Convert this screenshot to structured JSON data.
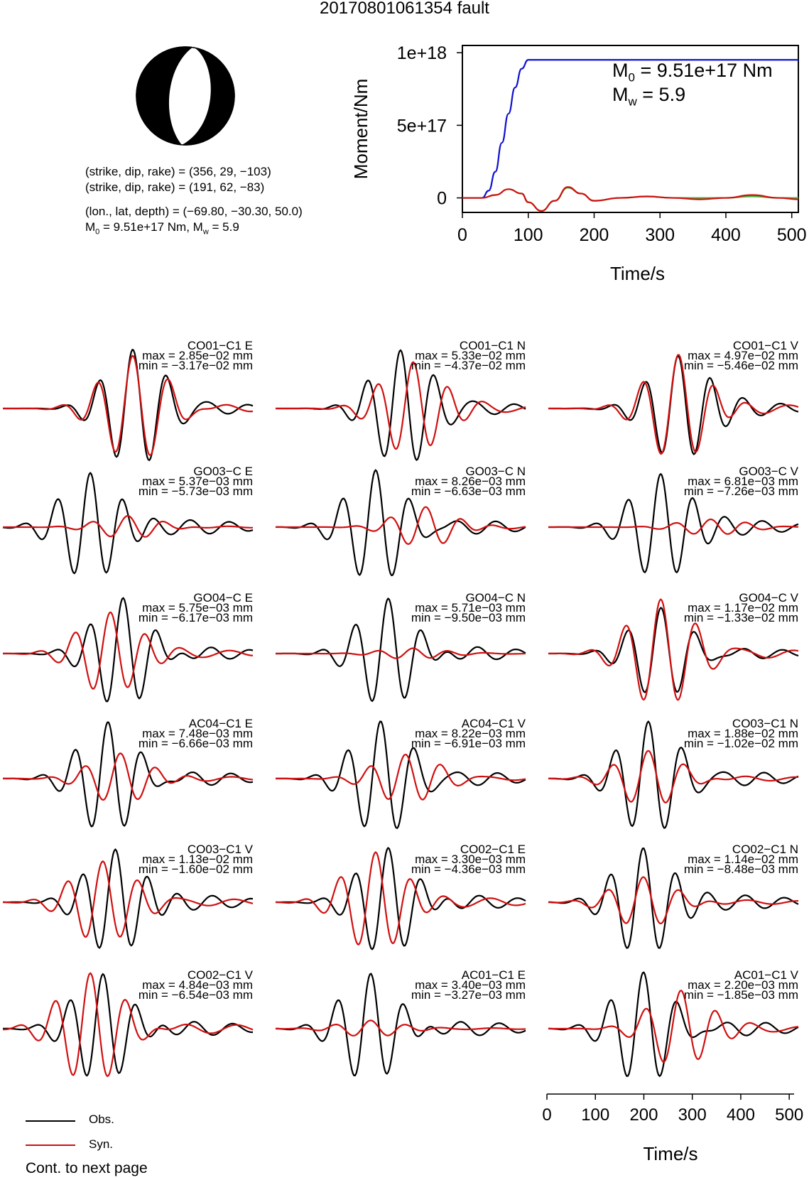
{
  "title": "20170801061354 fault",
  "beachball": {
    "type": "focal-mechanism",
    "colors": {
      "compression": "#000000",
      "dilatation": "#ffffff"
    }
  },
  "info": {
    "line1": "(strike, dip, rake) = (356, 29, −103)",
    "line2": "(strike, dip, rake) = (191, 62, −83)",
    "line3": "(lon., lat, depth) = (−69.80, −30.30, 50.0)",
    "line4_m0": "M",
    "line4_m0_sub": "0",
    "line4_rest": " = 9.51e+17 Nm, M",
    "line4_mw_sub": "w",
    "line4_end": " = 5.9"
  },
  "moment_plot": {
    "m0_label": "M",
    "m0_sub": "0",
    "m0_value": " = 9.51e+17 Nm",
    "mw_label": "M",
    "mw_sub": "w",
    "mw_value": " = 5.9"
  },
  "chart_data": [
    {
      "type": "line",
      "ylabel": "Moment/Nm",
      "xlabel": "Time/s",
      "xlim": [
        0,
        510
      ],
      "ylim": [
        -1e+17,
        1.05e+18
      ],
      "xticks": [
        "0",
        "100",
        "200",
        "300",
        "400",
        "500"
      ],
      "yticks": [
        "0",
        "5e+17",
        "1e+18"
      ],
      "series": [
        {
          "color": "#1010d0",
          "x": [
            0,
            30,
            40,
            50,
            60,
            70,
            80,
            90,
            100,
            510
          ],
          "y": [
            0,
            0,
            5e+16,
            1.8e+17,
            3.8e+17,
            5.8e+17,
            7.6e+17,
            8.9e+17,
            9.51e+17,
            9.51e+17
          ]
        },
        {
          "color": "#3fbf3f",
          "x": [
            0,
            30,
            50,
            70,
            90,
            100,
            120,
            140,
            160,
            180,
            200,
            240,
            280,
            320,
            360,
            400,
            440,
            480,
            510
          ],
          "y": [
            0,
            0,
            2e+16,
            6e+16,
            3e+16,
            -3e+16,
            -9e+16,
            -2e+16,
            7e+16,
            3e+16,
            -2e+16,
            0,
            1e+16,
            0,
            0,
            0,
            1e+16,
            0,
            0
          ]
        },
        {
          "color": "#d01010",
          "x": [
            0,
            30,
            50,
            70,
            90,
            100,
            120,
            140,
            160,
            180,
            200,
            240,
            280,
            320,
            360,
            400,
            440,
            480,
            510
          ],
          "y": [
            0,
            0,
            2e+16,
            6e+16,
            3e+16,
            -3e+16,
            -9e+16,
            -2e+16,
            7.5e+16,
            3e+16,
            -2e+16,
            0,
            1e+16,
            0,
            -1e+16,
            0,
            2e+16,
            0,
            -1e+16
          ]
        }
      ]
    },
    {
      "type": "line",
      "xlabel": "Time/s",
      "xlim": [
        0,
        510
      ],
      "xticks": [
        "0",
        "100",
        "200",
        "300",
        "400",
        "500"
      ],
      "legend": [
        {
          "label": "Obs.",
          "color": "#000000"
        },
        {
          "label": "Syn.",
          "color": "#d01010"
        }
      ],
      "panels": [
        {
          "name": "CO01−C1 E",
          "max": "max = 2.85e−02 mm",
          "min": "min = −3.17e−02 mm",
          "obs_peak": 0.52,
          "obs_amp": 1.0,
          "syn_amp": 0.95,
          "shift": 0
        },
        {
          "name": "CO01−C1 N",
          "max": "max = 5.33e−02 mm",
          "min": "min = −4.37e−02 mm",
          "obs_peak": 0.5,
          "obs_amp": 1.0,
          "syn_amp": 0.85,
          "shift": 0.05
        },
        {
          "name": "CO01−C1 V",
          "max": "max = 4.97e−02 mm",
          "min": "min = −5.46e−02 mm",
          "obs_peak": 0.52,
          "obs_amp": 1.0,
          "syn_amp": 0.95,
          "shift": 0
        },
        {
          "name": "GO03−C E",
          "max": "max = 5.37e−03 mm",
          "min": "min = −5.73e−03 mm",
          "obs_peak": 0.35,
          "obs_amp": 1.0,
          "syn_amp": 0.2,
          "shift": 0.15
        },
        {
          "name": "GO03−C N",
          "max": "max = 8.26e−03 mm",
          "min": "min = −6.63e−03 mm",
          "obs_peak": 0.4,
          "obs_amp": 1.0,
          "syn_amp": 0.35,
          "shift": 0.2
        },
        {
          "name": "GO03−C V",
          "max": "max = 6.81e−03 mm",
          "min": "min = −7.26e−03 mm",
          "obs_peak": 0.45,
          "obs_amp": 1.0,
          "syn_amp": 0.15,
          "shift": 0.2
        },
        {
          "name": "GO04−C E",
          "max": "max = 5.75e−03 mm",
          "min": "min = −6.17e−03 mm",
          "obs_peak": 0.48,
          "obs_amp": 1.0,
          "syn_amp": 0.75,
          "shift": -0.05
        },
        {
          "name": "GO04−C N",
          "max": "max = 5.71e−03 mm",
          "min": "min = −9.50e−03 mm",
          "obs_peak": 0.45,
          "obs_amp": 1.0,
          "syn_amp": 0.1,
          "shift": 0.1
        },
        {
          "name": "GO04−C V",
          "max": "max = 1.17e−02 mm",
          "min": "min = −1.33e−02 mm",
          "obs_peak": 0.45,
          "obs_amp": 0.8,
          "syn_amp": 1.0,
          "shift": 0
        },
        {
          "name": "AC04−C1 E",
          "max": "max = 7.48e−03 mm",
          "min": "min = −6.66e−03 mm",
          "obs_peak": 0.42,
          "obs_amp": 1.0,
          "syn_amp": 0.45,
          "shift": 0.05
        },
        {
          "name": "AC04−C1 V",
          "max": "max = 8.22e−03 mm",
          "min": "min = −6.91e−03 mm",
          "obs_peak": 0.42,
          "obs_amp": 1.0,
          "syn_amp": 0.45,
          "shift": 0.1
        },
        {
          "name": "CO03−C1 N",
          "max": "max = 1.88e−02 mm",
          "min": "min = −1.02e−02 mm",
          "obs_peak": 0.4,
          "obs_amp": 1.0,
          "syn_amp": 0.5,
          "shift": 0
        },
        {
          "name": "CO03−C1 V",
          "max": "max = 1.13e−02 mm",
          "min": "min = −1.60e−02 mm",
          "obs_peak": 0.45,
          "obs_amp": 1.0,
          "syn_amp": 0.75,
          "shift": -0.05
        },
        {
          "name": "CO02−C1 E",
          "max": "max = 3.30e−03 mm",
          "min": "min = −4.36e−03 mm",
          "obs_peak": 0.45,
          "obs_amp": 1.0,
          "syn_amp": 0.9,
          "shift": -0.05
        },
        {
          "name": "CO02−C1 N",
          "max": "max = 1.14e−02 mm",
          "min": "min = −8.48e−03 mm",
          "obs_peak": 0.38,
          "obs_amp": 1.0,
          "syn_amp": 0.45,
          "shift": 0
        },
        {
          "name": "CO02−C1 V",
          "max": "max = 4.84e−03 mm",
          "min": "min = −6.54e−03 mm",
          "obs_peak": 0.4,
          "obs_amp": 1.0,
          "syn_amp": 1.0,
          "shift": -0.05
        },
        {
          "name": "AC01−C1 E",
          "max": "max = 3.40e−03 mm",
          "min": "min = −3.27e−03 mm",
          "obs_peak": 0.38,
          "obs_amp": 1.0,
          "syn_amp": 0.15,
          "shift": 0
        },
        {
          "name": "AC01−C1 V",
          "max": "max = 2.20e−03 mm",
          "min": "min = −1.85e−03 mm",
          "obs_peak": 0.38,
          "obs_amp": 1.0,
          "syn_amp": 0.7,
          "shift": 0.15
        }
      ]
    }
  ],
  "footer": {
    "continuation": "Cont. to next page"
  }
}
